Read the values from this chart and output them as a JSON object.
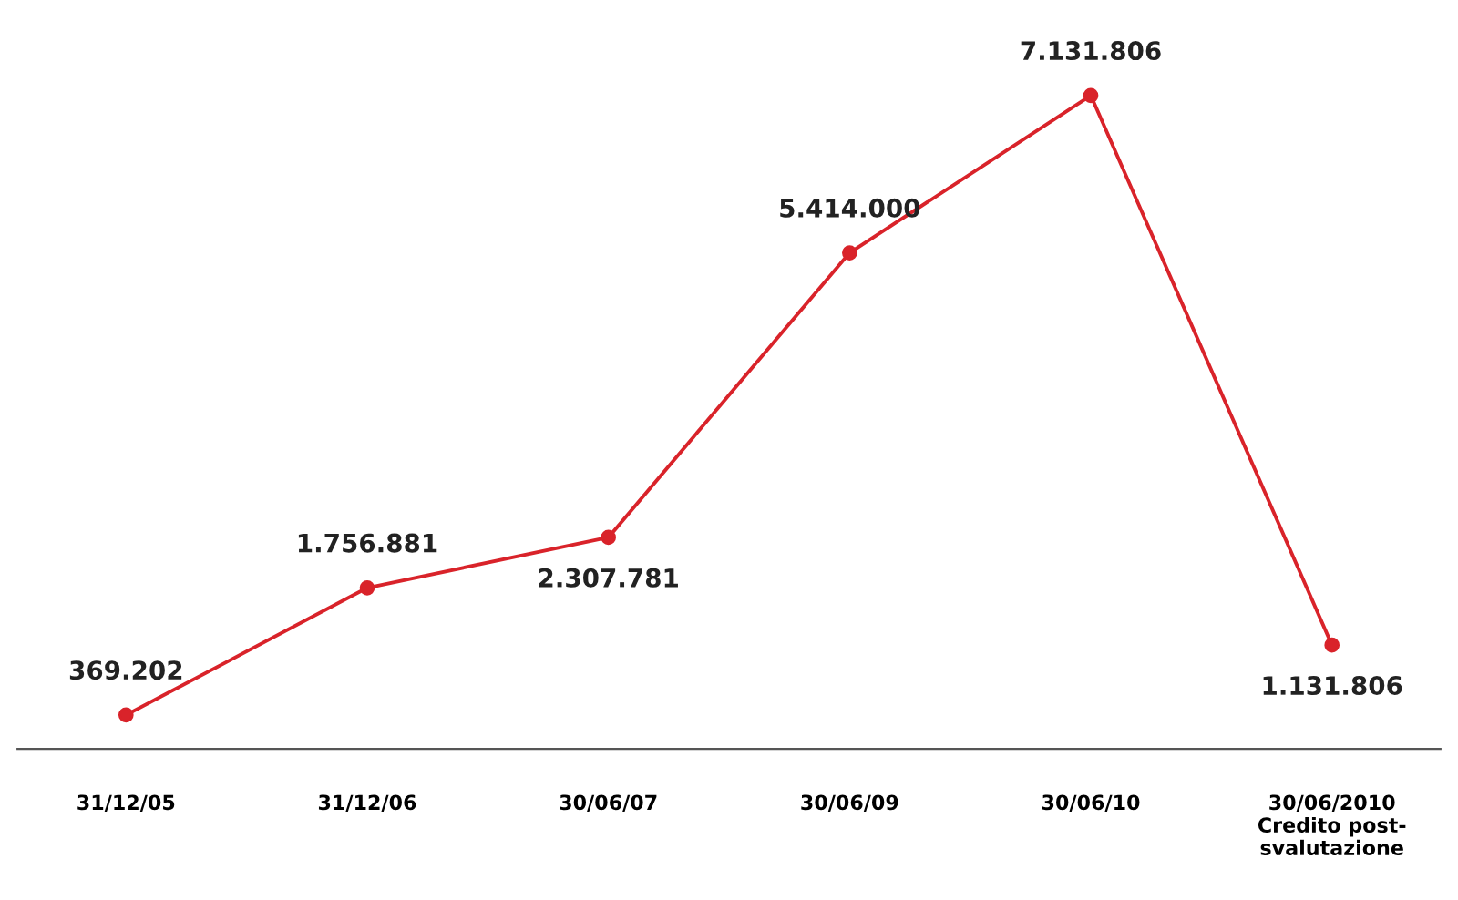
{
  "chart_data": {
    "type": "line",
    "categories": [
      "31/12/05",
      "31/12/06",
      "30/06/07",
      "30/06/09",
      "30/06/10",
      "30/06/2010\nCredito post-\nsvalutazione"
    ],
    "series": [
      {
        "color": "#d9232a",
        "values": [
          369202,
          1756881,
          2307781,
          5414000,
          7131806,
          1131806
        ],
        "value_labels": [
          "369.202",
          "1.756.881",
          "2.307.781",
          "5.414.000",
          "7.131.806",
          "1.131.806"
        ]
      }
    ],
    "tick_labels": "x",
    "marker": "circle",
    "line_style": "solid",
    "grid": false,
    "legend": false
  }
}
